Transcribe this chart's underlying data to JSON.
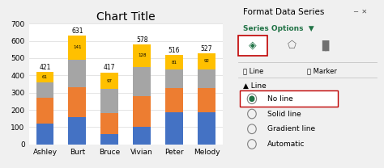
{
  "title": "Chart Title",
  "categories": [
    "Ashley",
    "Burt",
    "Bruce",
    "Vivian",
    "Peter",
    "Melody"
  ],
  "series": {
    "Q1": [
      120,
      160,
      60,
      100,
      185,
      185
    ],
    "Q2": [
      150,
      170,
      120,
      180,
      140,
      140
    ],
    "Q3": [
      90,
      160,
      140,
      170,
      110,
      110
    ],
    "Q4": [
      61,
      141,
      97,
      128,
      81,
      92
    ]
  },
  "totals": [
    421,
    631,
    417,
    578,
    516,
    527
  ],
  "colors": {
    "Q1": "#4472C4",
    "Q2": "#ED7D31",
    "Q3": "#A5A5A5",
    "Q4": "#FFC000"
  },
  "ylim": [
    0,
    700
  ],
  "yticks": [
    0,
    100,
    200,
    300,
    400,
    500,
    600,
    700
  ],
  "chart_bg": "#FFFFFF",
  "grid_color": "#D9D9D9",
  "excel_bg": "#F0F0F0",
  "panel_bg": "#E8E8E8",
  "title_fontsize": 10,
  "axis_fontsize": 6.5,
  "legend_fontsize": 6,
  "label_fontsize": 5.5
}
